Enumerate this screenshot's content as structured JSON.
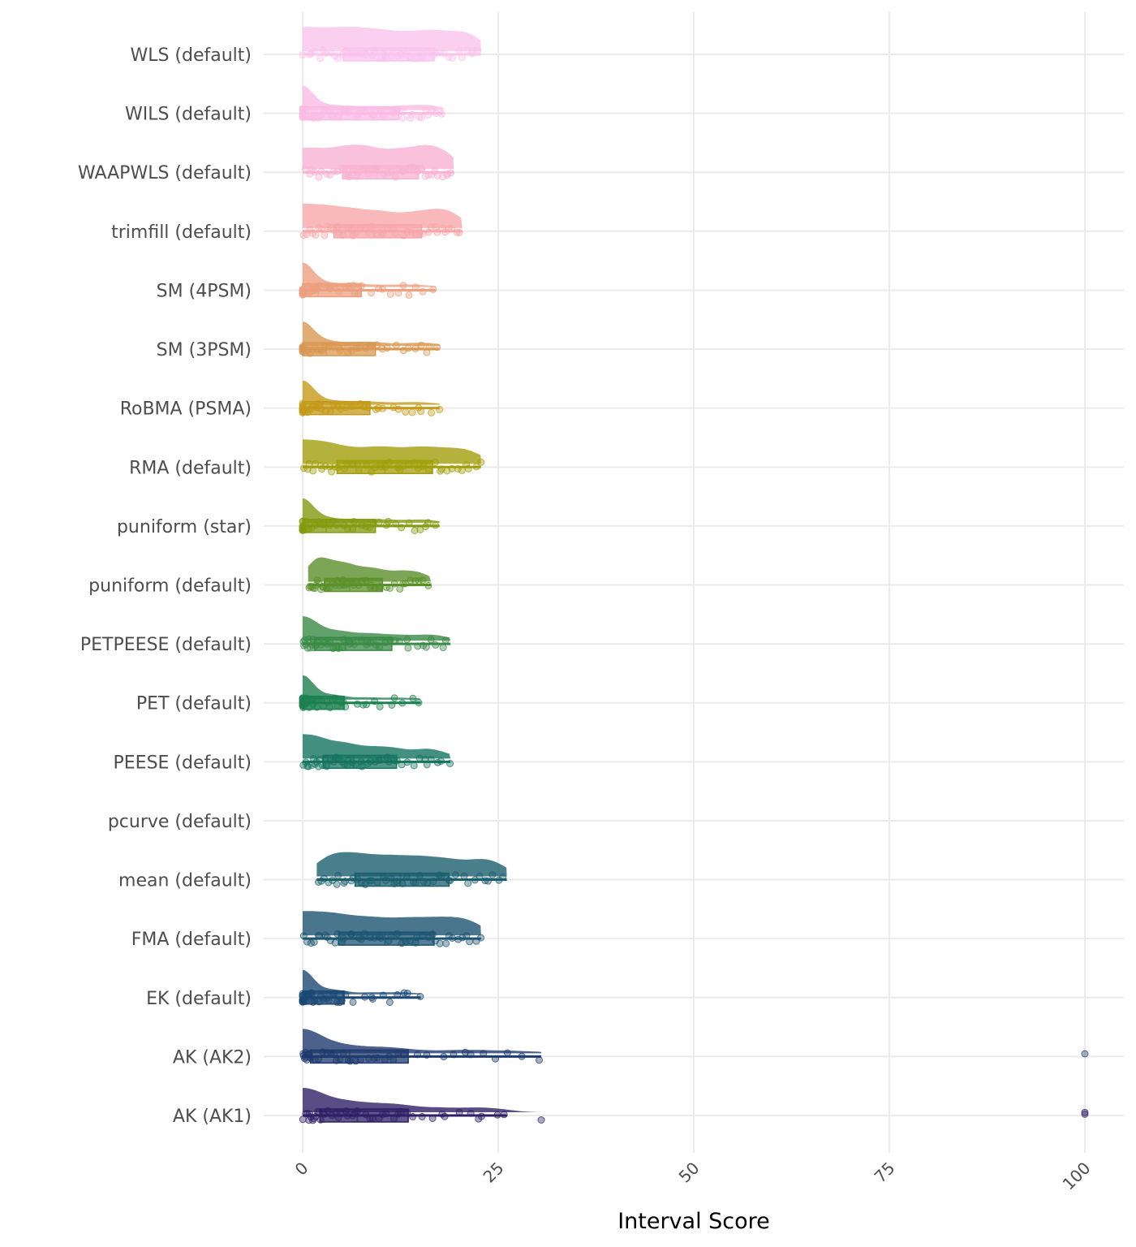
{
  "chart_data": {
    "type": "raincloud",
    "title": "",
    "xlabel": "Interval Score",
    "ylabel": "",
    "xlim": [
      0,
      100
    ],
    "xticks": [
      "0",
      "25",
      "50",
      "75",
      "100"
    ],
    "xtick_values": [
      0,
      25,
      50,
      75,
      100
    ],
    "grid": true,
    "series": [
      {
        "name": "WLS (default)",
        "color": "#f9c3ec",
        "min": 0,
        "q1": 5.2,
        "median": 10.5,
        "q3": 16.8,
        "max": 22.8,
        "outliers": []
      },
      {
        "name": "WILS (default)",
        "color": "#f9bbe4",
        "min": 0,
        "q1": 0,
        "median": 5,
        "q3": 12.3,
        "max": 18,
        "outliers": []
      },
      {
        "name": "WAAPWLS (default)",
        "color": "#f8b2d2",
        "min": 0,
        "q1": 5.1,
        "median": 9.5,
        "q3": 14.8,
        "max": 19.3,
        "outliers": []
      },
      {
        "name": "trimfill (default)",
        "color": "#f7a6a8",
        "min": 0,
        "q1": 4,
        "median": 9,
        "q3": 15.2,
        "max": 20.4,
        "outliers": []
      },
      {
        "name": "SM (4PSM)",
        "color": "#eca07f",
        "min": 0,
        "q1": 0,
        "median": 2,
        "q3": 7.5,
        "max": 17,
        "outliers": []
      },
      {
        "name": "SM (3PSM)",
        "color": "#d99852",
        "min": 0,
        "q1": 0,
        "median": 3,
        "q3": 9.3,
        "max": 17.5,
        "outliers": []
      },
      {
        "name": "RoBMA (PSMA)",
        "color": "#c49a1a",
        "min": 0,
        "q1": 0,
        "median": 2.5,
        "q3": 8.6,
        "max": 17.5,
        "outliers": []
      },
      {
        "name": "RMA (default)",
        "color": "#a29e0c",
        "min": 0,
        "q1": 4.4,
        "median": 10.5,
        "q3": 16.6,
        "max": 22.8,
        "outliers": []
      },
      {
        "name": "puniform (star)",
        "color": "#849a10",
        "min": 0,
        "q1": 0,
        "median": 3,
        "q3": 9.3,
        "max": 17.5,
        "outliers": []
      },
      {
        "name": "puniform (default)",
        "color": "#5b902a",
        "min": 0.7,
        "q1": 2.8,
        "median": 6,
        "q3": 10.2,
        "max": 16.4,
        "outliers": []
      },
      {
        "name": "PETPEESE (default)",
        "color": "#3a8a46",
        "min": 0,
        "q1": 1.5,
        "median": 5.5,
        "q3": 11.4,
        "max": 18.9,
        "outliers": []
      },
      {
        "name": "PET (default)",
        "color": "#1d8050",
        "min": 0,
        "q1": 0,
        "median": 1.5,
        "q3": 5.3,
        "max": 15.1,
        "outliers": []
      },
      {
        "name": "PEESE (default)",
        "color": "#157460",
        "min": 0,
        "q1": 2.6,
        "median": 6.5,
        "q3": 12,
        "max": 18.9,
        "outliers": []
      },
      {
        "name": "pcurve (default)",
        "color": "#1a6a6a",
        "min": null,
        "q1": null,
        "median": null,
        "q3": null,
        "max": null,
        "outliers": []
      },
      {
        "name": "mean (default)",
        "color": "#1b5e6e",
        "min": 1.8,
        "q1": 6.7,
        "median": 12.5,
        "q3": 18.7,
        "max": 26.1,
        "outliers": []
      },
      {
        "name": "FMA (default)",
        "color": "#1c5471",
        "min": 0,
        "q1": 4.6,
        "median": 10.5,
        "q3": 16.8,
        "max": 22.8,
        "outliers": []
      },
      {
        "name": "EK (default)",
        "color": "#1b4873",
        "min": 0,
        "q1": 0,
        "median": 1.5,
        "q3": 5.3,
        "max": 15.1,
        "outliers": []
      },
      {
        "name": "AK (AK2)",
        "color": "#1f3a6e",
        "min": 0,
        "q1": 1,
        "median": 6,
        "q3": 13.5,
        "max": 30.5,
        "outliers": [
          100
        ]
      },
      {
        "name": "AK (AK1)",
        "color": "#2f2066",
        "min": 0,
        "q1": 2.2,
        "median": 7,
        "q3": 13.5,
        "max": 26.1,
        "outliers": [
          30.5,
          100,
          100
        ]
      }
    ]
  }
}
